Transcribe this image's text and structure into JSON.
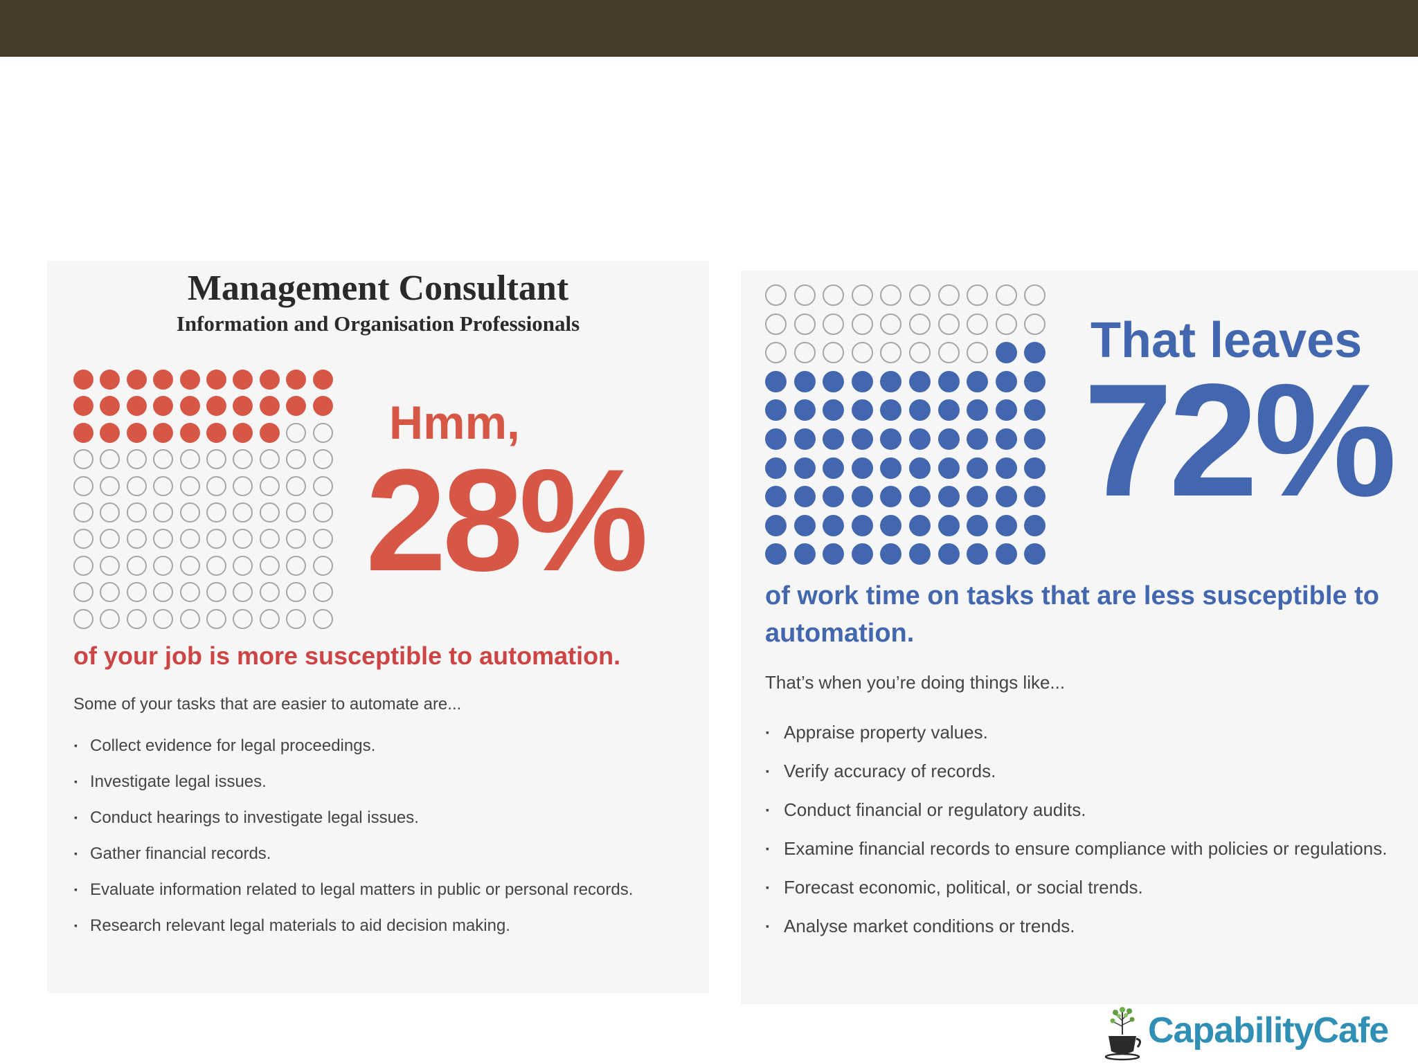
{
  "left_panel": {
    "title": "Management Consultant",
    "subtitle": "Information and Organisation Professionals",
    "waffle": {
      "total": 100,
      "filled": 28,
      "fill_color": "#d75747"
    },
    "hmm": "Hmm,",
    "percent": "28%",
    "headline": "of your job is more susceptible to automation.",
    "intro": "Some of your tasks that are easier to automate are...",
    "tasks": [
      "Collect evidence for legal proceedings.",
      "Investigate legal issues.",
      "Conduct hearings to investigate legal issues.",
      "Gather financial records.",
      "Evaluate information related to legal matters in public or personal records.",
      "Research relevant legal materials to aid decision making."
    ]
  },
  "right_panel": {
    "waffle": {
      "total": 100,
      "filled": 72,
      "fill_color": "#4367af"
    },
    "that_leaves": "That leaves",
    "percent": "72%",
    "headline": "of work time on tasks that are less susceptible to automation.",
    "intro": "That’s when you’re doing things like...",
    "tasks": [
      "Appraise property values.",
      "Verify accuracy of records.",
      "Conduct financial or regulatory audits.",
      "Examine financial records to ensure compliance with policies or regulations.",
      "Forecast economic, political, or social trends.",
      "Analyse market conditions or trends."
    ]
  },
  "logo": {
    "text": "CapabilityCafe",
    "icon": "coffee-cup-tree-icon"
  },
  "colors": {
    "top_bar": "#463a28",
    "accent_red": "#d75747",
    "accent_blue": "#4367af",
    "logo_blue": "#2f8fb4"
  }
}
